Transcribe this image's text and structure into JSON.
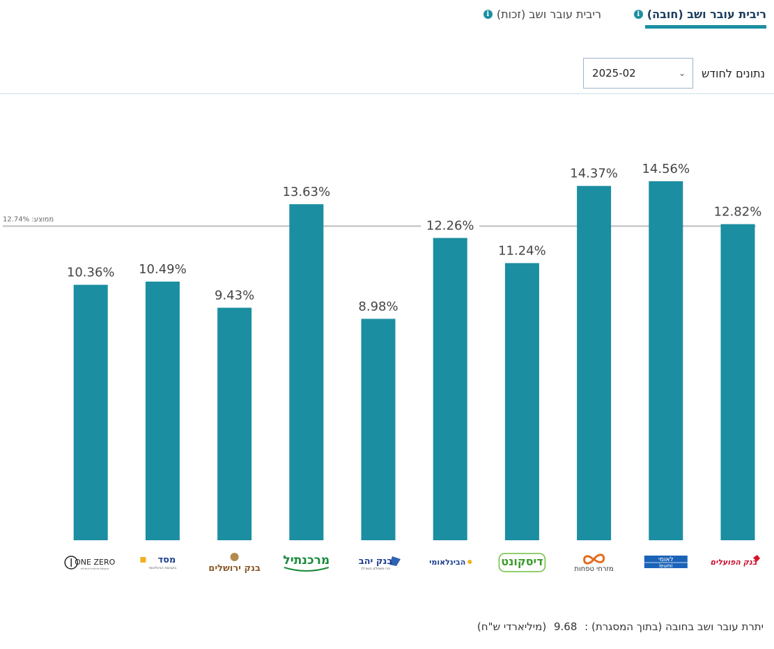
{
  "tabs": {
    "active": "ריבית עובר ושב (חובה)",
    "inactive": "ריבית עובר ושב (זכות)",
    "info_glyph": "i"
  },
  "filter": {
    "label": "נתונים לחודש",
    "selected": "2025-02"
  },
  "colors": {
    "bar": "#1b8ea1",
    "avg_line": "#bdbdbd",
    "accent": "#1c8fa2"
  },
  "chart_data": {
    "type": "bar",
    "value_suffix": "%",
    "categories": [
      {
        "name": "בנק הפועלים",
        "logo": "hapoalim-logo"
      },
      {
        "name": "לאומי",
        "logo": "leumi-logo",
        "sub": "leumi"
      },
      {
        "name": "מזרחי טפחות",
        "logo": "mizrahi-logo"
      },
      {
        "name": "דיסקונט",
        "logo": "discount-logo"
      },
      {
        "name": "הבינלאומי",
        "logo": "fibi-logo"
      },
      {
        "name": "בנק יהב",
        "logo": "yahav-logo",
        "sub": "הכי משתלם בשבילך"
      },
      {
        "name": "מרכנתיל",
        "logo": "mercantile-logo"
      },
      {
        "name": "בנק ירושלים",
        "logo": "jerusalem-logo"
      },
      {
        "name": "מסד",
        "logo": "massad-logo",
        "sub": "בקבוצת הבינלאומי"
      },
      {
        "name": "ONE ZERO",
        "logo": "onezero-logo",
        "sub": "בנקאות פרטית דיגיטלית"
      }
    ],
    "values": [
      12.82,
      14.56,
      14.37,
      11.24,
      12.26,
      8.98,
      13.63,
      9.43,
      10.49,
      10.36
    ],
    "labels": [
      "12.82%",
      "14.56%",
      "14.37%",
      "11.24%",
      "12.26%",
      "8.98%",
      "13.63%",
      "9.43%",
      "10.49%",
      "10.36%"
    ],
    "average": 12.74,
    "average_label": "ממוצע: 12.74%",
    "ylim": [
      0,
      14.56
    ]
  },
  "footer": {
    "label": "יתרת עובר ושב בחובה (בתוך המסגרת) :",
    "value": "9.68",
    "unit": "(מיליארדי ש\"ח)"
  }
}
